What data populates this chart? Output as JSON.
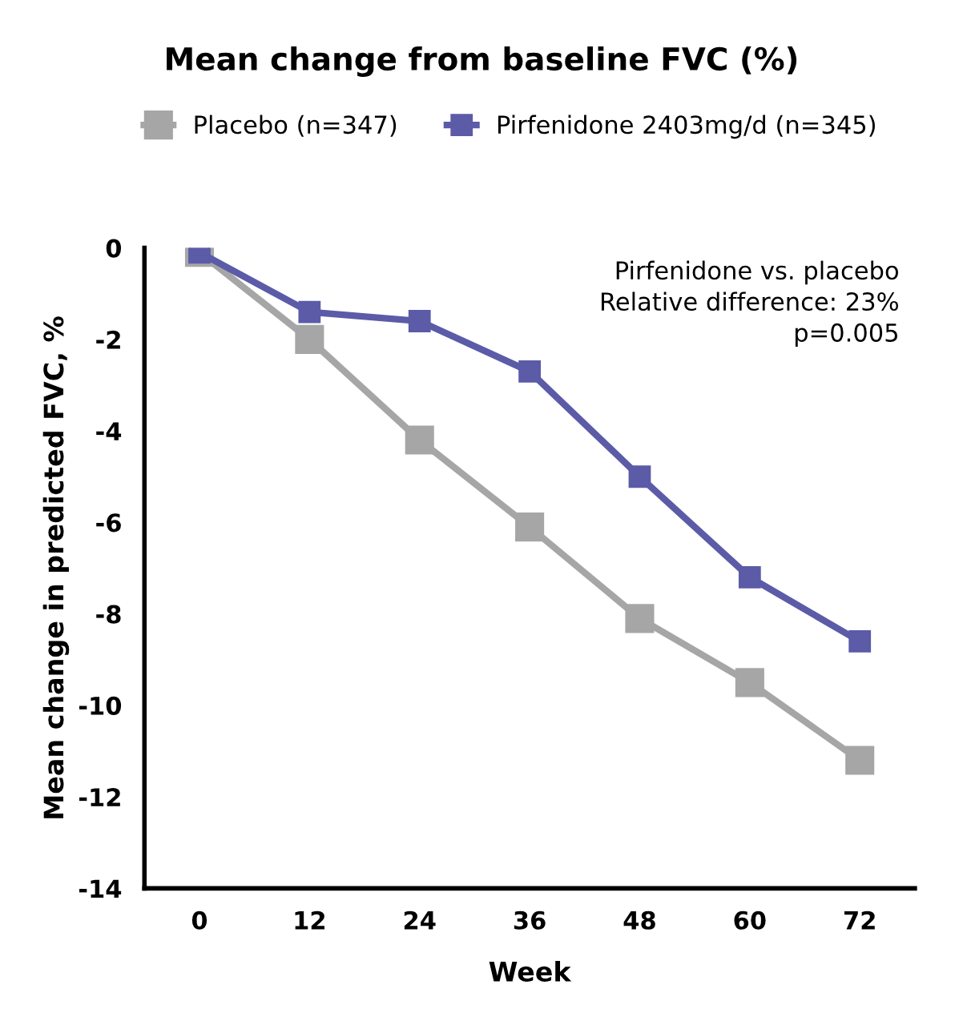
{
  "chart_data": {
    "type": "line",
    "title": "Mean change from baseline FVC (%)",
    "xlabel": "Week",
    "ylabel": "Mean change in predicted FVC, %",
    "x": [
      0,
      12,
      24,
      36,
      48,
      60,
      72
    ],
    "series": [
      {
        "name": "Placebo (n=347)",
        "color": "#a6a6a6",
        "values": [
          -0.1,
          -2.0,
          -4.2,
          -6.1,
          -8.1,
          -9.5,
          -11.2
        ]
      },
      {
        "name": "Pirfenidone 2403mg/d (n=345)",
        "color": "#5b5ba8",
        "values": [
          -0.1,
          -1.4,
          -1.6,
          -2.7,
          -5.0,
          -7.2,
          -8.6
        ]
      }
    ],
    "xlim": [
      -6,
      78
    ],
    "xticks": [
      0,
      12,
      24,
      36,
      48,
      60,
      72
    ],
    "ylim": [
      -14,
      0
    ],
    "yticks": [
      0,
      -2,
      -4,
      -6,
      -8,
      -10,
      -12,
      -14
    ],
    "annotations": [
      "Pirfenidone vs. placebo\nRelative difference: 23%\np=0.005"
    ],
    "marker": "square",
    "line_style": "solid",
    "grid": false,
    "legend": "top"
  }
}
